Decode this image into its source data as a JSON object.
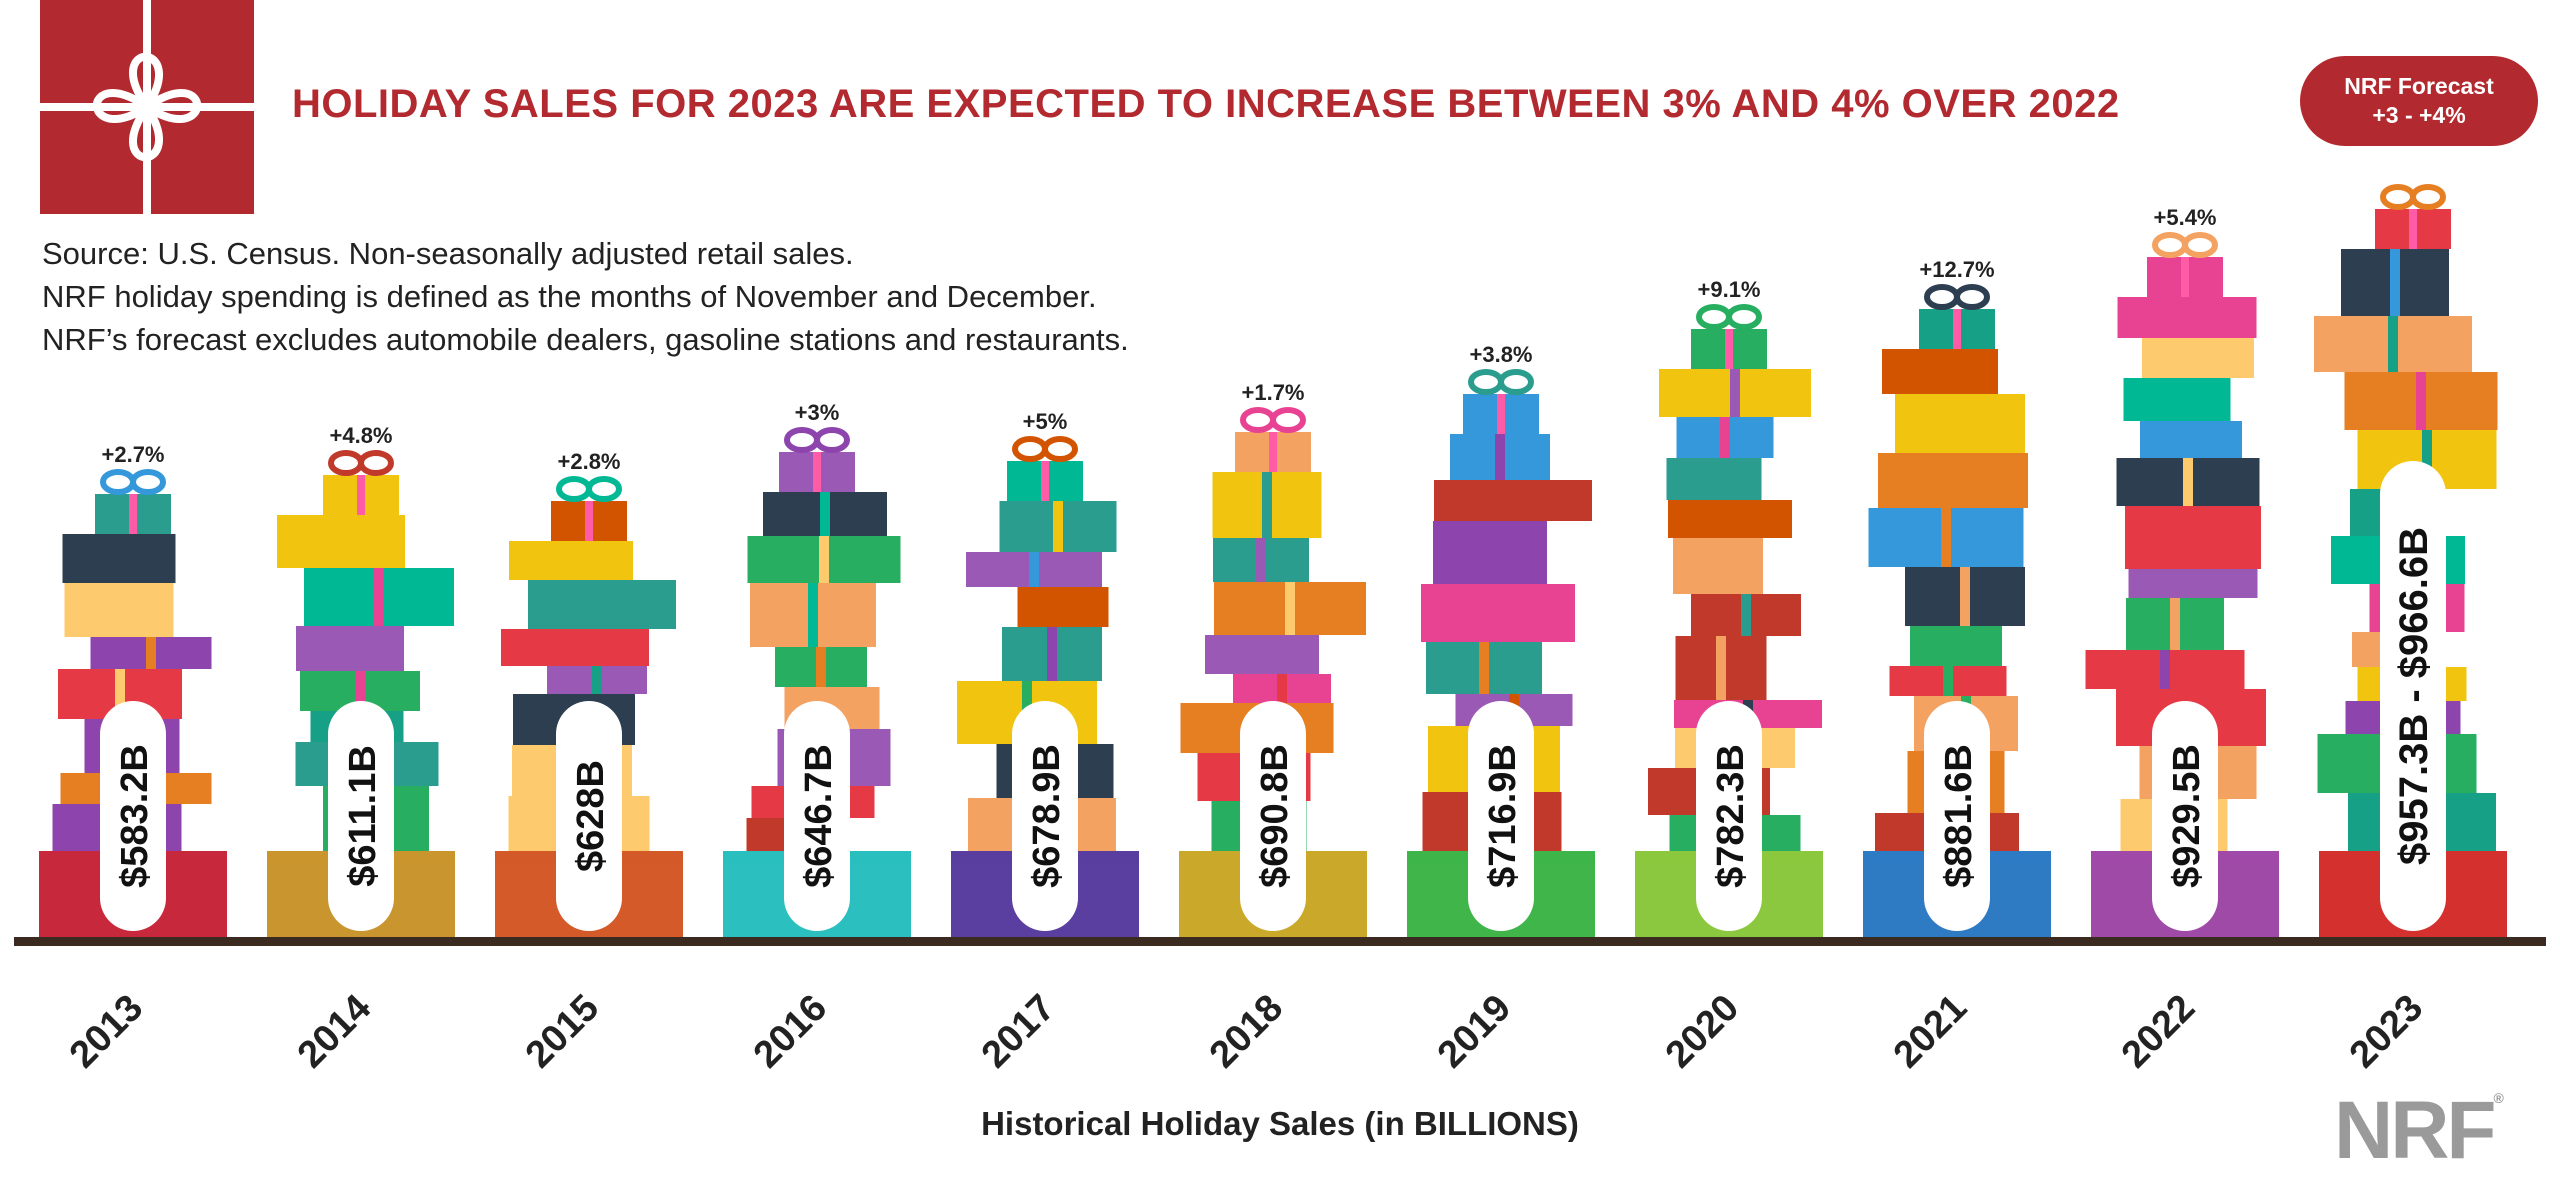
{
  "header": {
    "headline": "HOLIDAY SALES FOR 2023 ARE EXPECTED TO INCREASE BETWEEN 3% AND 4% OVER 2022",
    "badge_line1": "NRF Forecast",
    "badge_line2": "+3 - +4%"
  },
  "source_notes": [
    "Source: U.S. Census. Non-seasonally adjusted retail sales.",
    "NRF holiday spending is defined as the months of November and December.",
    "NRF’s forecast excludes automobile dealers, gasoline stations and restaurants."
  ],
  "footer": {
    "xlabel": "Historical Holiday Sales (in BILLIONS)",
    "brand": "NRF"
  },
  "colors": {
    "brand_red": "#b22a2f",
    "baseline": "#3a2a1f",
    "bars": [
      "#c8283c",
      "#c9952e",
      "#d45a2a",
      "#2bbfbf",
      "#5a3fa0",
      "#c9a82a",
      "#3fb54a",
      "#8cc83f",
      "#2e7bc4",
      "#a04aa8",
      "#d4302e"
    ]
  },
  "chart_data": {
    "type": "bar",
    "title": "HOLIDAY SALES FOR 2023 ARE EXPECTED TO INCREASE BETWEEN 3% AND 4% OVER 2022",
    "xlabel": "Historical Holiday Sales (in BILLIONS)",
    "ylabel": "",
    "categories": [
      "2013",
      "2014",
      "2015",
      "2016",
      "2017",
      "2018",
      "2019",
      "2020",
      "2021",
      "2022",
      "2023"
    ],
    "values": [
      583.2,
      611.1,
      628,
      646.7,
      678.9,
      690.8,
      716.9,
      782.3,
      881.6,
      929.5,
      966.6
    ],
    "value_labels": [
      "$583.2B",
      "$611.1B",
      "$628B",
      "$646.7B",
      "$678.9B",
      "$690.8B",
      "$716.9B",
      "$782.3B",
      "$881.6B",
      "$929.5B",
      "$957.3B - $966.6B"
    ],
    "growth_labels": [
      "+2.7%",
      "+4.8%",
      "+2.8%",
      "+3%",
      "+5%",
      "+1.7%",
      "+3.8%",
      "+9.1%",
      "+12.7%",
      "+5.4%",
      ""
    ],
    "forecast_range": [
      957.3,
      966.6
    ],
    "ylim": [
      0,
      1000
    ]
  }
}
